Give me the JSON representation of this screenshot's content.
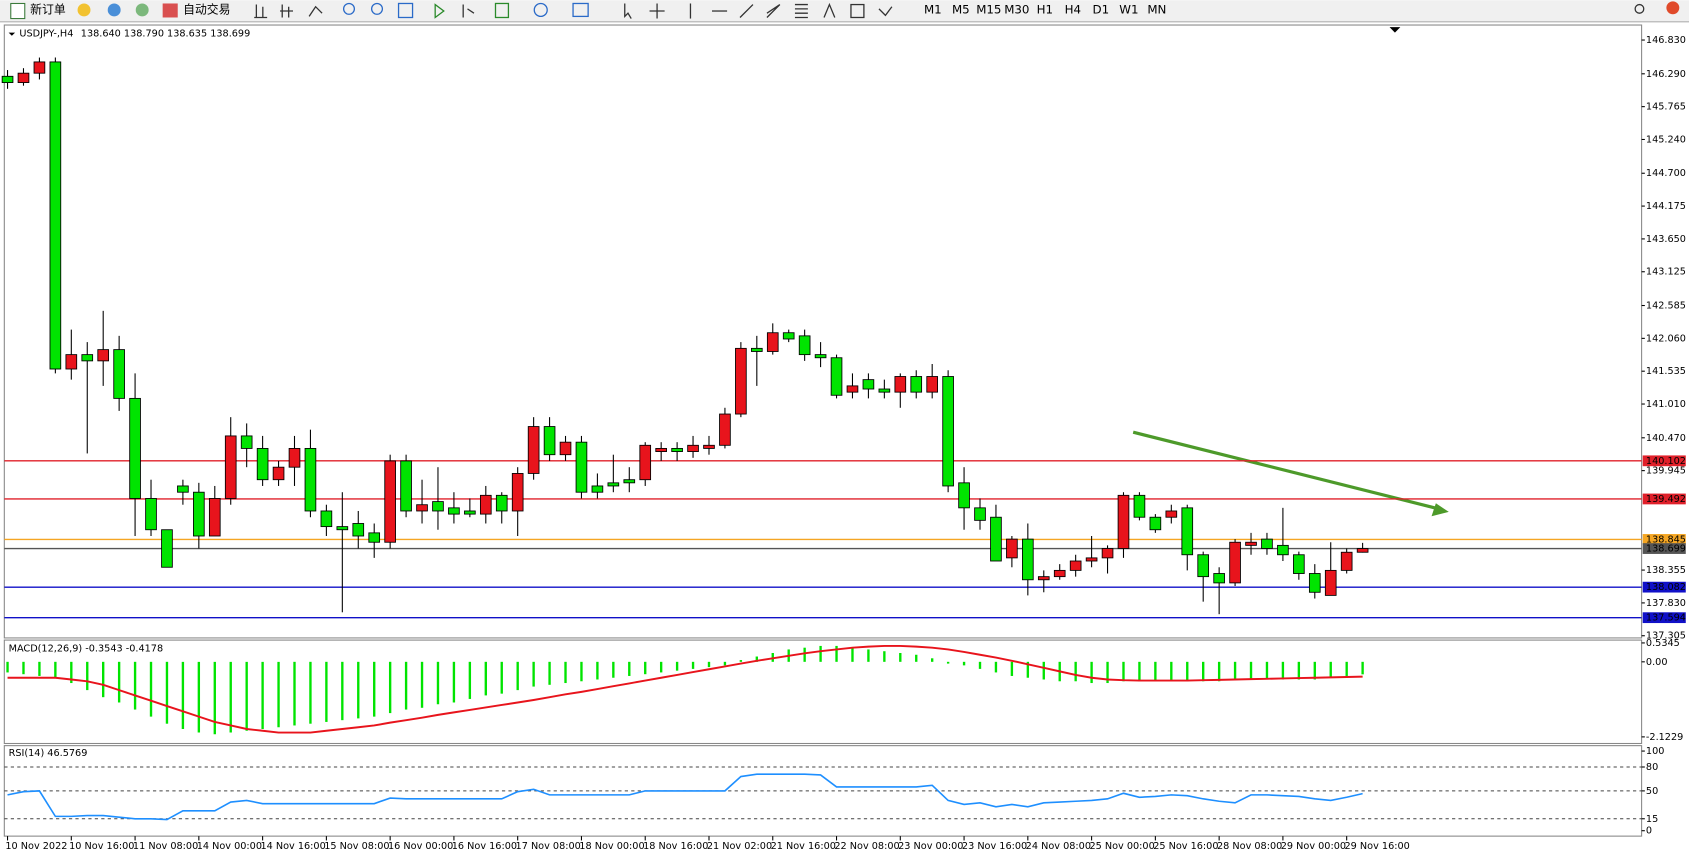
{
  "toolbar": {
    "new_order": "新订单",
    "auto_trading": "自动交易",
    "timeframes": [
      "M1",
      "M5",
      "M15",
      "M30",
      "H1",
      "H4",
      "D1",
      "W1",
      "MN"
    ]
  },
  "chart_data": [
    {
      "type": "candlestick",
      "title": "USDJPY-,H4",
      "ohlc_label": "138.640 138.790 138.635 138.699",
      "up_color": "#e8141c",
      "down_color": "#00e400",
      "categories": [
        "10 Nov 2022",
        null,
        null,
        null,
        "10 Nov 16:00",
        null,
        null,
        null,
        "11 Nov 08:00",
        null,
        null,
        null,
        "14 Nov 00:00",
        null,
        null,
        null,
        "14 Nov 16:00",
        null,
        null,
        null,
        "15 Nov 08:00",
        null,
        null,
        null,
        "16 Nov 00:00",
        null,
        null,
        null,
        "16 Nov 16:00",
        null,
        null,
        null,
        "17 Nov 08:00",
        null,
        null,
        null,
        "18 Nov 00:00",
        null,
        null,
        null,
        "18 Nov 16:00",
        null,
        null,
        null,
        "21 Nov 02:00",
        null,
        null,
        null,
        "21 Nov 16:00",
        null,
        null,
        null,
        "22 Nov 08:00",
        null,
        null,
        null,
        "23 Nov 00:00",
        null,
        null,
        null,
        "23 Nov 16:00",
        null,
        null,
        null,
        "24 Nov 08:00",
        null,
        null,
        null,
        "25 Nov 00:00",
        null,
        null,
        null,
        "25 Nov 16:00",
        null,
        null,
        null,
        "28 Nov 08:00",
        null,
        null,
        null,
        "29 Nov 00:00",
        null,
        null,
        null,
        "29 Nov 16:00",
        null
      ],
      "open": [
        146.25,
        146.15,
        146.3,
        146.48,
        141.57,
        141.8,
        141.7,
        141.88,
        141.1,
        139.5,
        139.0,
        139.7,
        139.6,
        138.9,
        139.5,
        140.5,
        140.3,
        139.8,
        140.0,
        140.3,
        139.3,
        139.05,
        139.1,
        138.95,
        138.8,
        140.1,
        139.3,
        139.45,
        139.35,
        139.3,
        139.25,
        139.55,
        139.3,
        139.9,
        140.65,
        140.2,
        140.4,
        139.7,
        139.75,
        139.8,
        139.8,
        140.25,
        140.3,
        140.25,
        140.3,
        140.35,
        140.85,
        141.9,
        141.85,
        142.15,
        142.1,
        141.8,
        141.75,
        141.2,
        141.4,
        141.25,
        141.2,
        141.45,
        141.2,
        141.45,
        139.75,
        139.35,
        139.2,
        138.55,
        138.85,
        138.2,
        138.25,
        138.35,
        138.5,
        138.55,
        138.7,
        139.55,
        139.2,
        139.2,
        139.35,
        138.6,
        138.3,
        138.15,
        138.75,
        138.85,
        138.75,
        138.6,
        138.3,
        137.95,
        138.35,
        138.64
      ],
      "high": [
        146.35,
        146.38,
        146.55,
        146.55,
        142.2,
        142.0,
        142.5,
        142.1,
        141.5,
        139.8,
        139.0,
        139.8,
        139.75,
        139.7,
        140.8,
        140.7,
        140.5,
        140.1,
        140.5,
        140.6,
        139.4,
        139.6,
        139.3,
        139.1,
        140.2,
        140.2,
        139.8,
        140.0,
        139.6,
        139.5,
        139.7,
        139.6,
        140.0,
        140.8,
        140.8,
        140.5,
        140.5,
        139.9,
        140.2,
        140.0,
        140.4,
        140.4,
        140.4,
        140.5,
        140.5,
        140.95,
        142.0,
        142.1,
        142.3,
        142.2,
        142.2,
        142.0,
        141.8,
        141.5,
        141.5,
        141.4,
        141.5,
        141.55,
        141.65,
        141.55,
        140.0,
        139.5,
        139.4,
        138.9,
        139.1,
        138.35,
        138.45,
        138.6,
        138.9,
        138.75,
        139.6,
        139.6,
        139.25,
        139.4,
        139.4,
        138.65,
        138.4,
        138.85,
        138.95,
        138.95,
        139.35,
        138.65,
        138.45,
        138.8,
        138.7,
        138.79
      ],
      "low": [
        146.05,
        146.1,
        146.2,
        141.5,
        141.4,
        140.22,
        141.3,
        140.9,
        138.9,
        138.9,
        138.4,
        139.4,
        138.7,
        138.9,
        139.4,
        140.0,
        139.7,
        139.7,
        139.7,
        139.2,
        138.9,
        137.68,
        138.7,
        138.55,
        138.7,
        139.2,
        139.1,
        139.0,
        139.1,
        139.2,
        139.1,
        139.1,
        138.9,
        139.8,
        140.1,
        140.1,
        139.5,
        139.5,
        139.6,
        139.6,
        139.7,
        140.1,
        140.1,
        140.15,
        140.2,
        140.3,
        140.8,
        141.3,
        141.8,
        142.0,
        141.7,
        141.6,
        141.1,
        141.1,
        141.1,
        141.1,
        140.95,
        141.1,
        141.1,
        139.6,
        139.0,
        139.0,
        138.5,
        138.4,
        137.95,
        138.0,
        138.2,
        138.25,
        138.4,
        138.3,
        138.55,
        139.15,
        138.95,
        139.1,
        138.35,
        137.85,
        137.65,
        138.1,
        138.6,
        138.6,
        138.5,
        138.2,
        137.9,
        137.95,
        138.3,
        138.635
      ],
      "close": [
        146.15,
        146.3,
        146.48,
        141.57,
        141.8,
        141.7,
        141.88,
        141.1,
        139.5,
        139.0,
        138.4,
        139.6,
        138.9,
        139.5,
        140.5,
        140.3,
        139.8,
        140.0,
        140.3,
        139.3,
        139.05,
        139.0,
        138.9,
        138.8,
        140.1,
        139.3,
        139.4,
        139.3,
        139.25,
        139.25,
        139.55,
        139.3,
        139.9,
        140.65,
        140.2,
        140.4,
        139.6,
        139.6,
        139.7,
        139.75,
        140.35,
        140.3,
        140.25,
        140.35,
        140.35,
        140.85,
        141.9,
        141.85,
        142.15,
        142.05,
        141.8,
        141.75,
        141.15,
        141.3,
        141.25,
        141.2,
        141.45,
        141.2,
        141.45,
        139.7,
        139.35,
        139.15,
        138.5,
        138.85,
        138.2,
        138.25,
        138.35,
        138.5,
        138.55,
        138.7,
        139.55,
        139.2,
        139.0,
        139.3,
        138.6,
        138.25,
        138.15,
        138.8,
        138.8,
        138.7,
        138.6,
        138.3,
        138.0,
        138.35,
        138.64,
        138.699
      ],
      "ylim": [
        137.27,
        147.07
      ],
      "yticks": [
        {
          "value": 146.83,
          "label": "146.830"
        },
        {
          "value": 146.29,
          "label": "146.290"
        },
        {
          "value": 145.765,
          "label": "145.765"
        },
        {
          "value": 145.24,
          "label": "145.240"
        },
        {
          "value": 144.7,
          "label": "144.700"
        },
        {
          "value": 144.175,
          "label": "144.175"
        },
        {
          "value": 143.65,
          "label": "143.650"
        },
        {
          "value": 143.125,
          "label": "143.125"
        },
        {
          "value": 142.585,
          "label": "142.585"
        },
        {
          "value": 142.06,
          "label": "142.060"
        },
        {
          "value": 141.535,
          "label": "141.535"
        },
        {
          "value": 141.01,
          "label": "141.010"
        },
        {
          "value": 140.47,
          "label": "140.470"
        },
        {
          "value": 139.945,
          "label": "139.945"
        },
        {
          "value": 138.355,
          "label": "138.355"
        },
        {
          "value": 137.83,
          "label": "137.830"
        },
        {
          "value": 137.305,
          "label": "137.305"
        }
      ],
      "levels": [
        {
          "value": 140.102,
          "color": "#e0202a"
        },
        {
          "value": 139.492,
          "color": "#e0202a"
        },
        {
          "value": 138.845,
          "color": "#f5a623"
        },
        {
          "value": 138.699,
          "color": "#555555"
        },
        {
          "value": 138.082,
          "color": "#1010c8"
        },
        {
          "value": 137.594,
          "color": "#1010c8"
        }
      ]
    },
    {
      "type": "macd",
      "title": "MACD(12,26,9) -0.3543 -0.4178",
      "hist_color": "#00e400",
      "signal_color": "#e8141c",
      "series": [
        {
          "name": "MACD",
          "values": [
            -0.3,
            -0.35,
            -0.4,
            -0.45,
            -0.6,
            -0.8,
            -1.0,
            -1.15,
            -1.35,
            -1.55,
            -1.75,
            -1.9,
            -2.0,
            -2.05,
            -2.0,
            -1.95,
            -1.9,
            -1.85,
            -1.8,
            -1.75,
            -1.7,
            -1.65,
            -1.6,
            -1.55,
            -1.45,
            -1.35,
            -1.3,
            -1.2,
            -1.15,
            -1.05,
            -0.95,
            -0.9,
            -0.8,
            -0.7,
            -0.65,
            -0.6,
            -0.55,
            -0.5,
            -0.45,
            -0.4,
            -0.35,
            -0.3,
            -0.25,
            -0.2,
            -0.15,
            -0.1,
            0.05,
            0.15,
            0.25,
            0.35,
            0.4,
            0.45,
            0.45,
            0.4,
            0.35,
            0.3,
            0.25,
            0.2,
            0.1,
            -0.05,
            -0.1,
            -0.2,
            -0.3,
            -0.4,
            -0.45,
            -0.5,
            -0.55,
            -0.55,
            -0.6,
            -0.6,
            -0.55,
            -0.55,
            -0.55,
            -0.55,
            -0.55,
            -0.55,
            -0.55,
            -0.5,
            -0.5,
            -0.5,
            -0.5,
            -0.5,
            -0.5,
            -0.45,
            -0.4,
            -0.3543
          ]
        },
        {
          "name": "Signal",
          "values": [
            -0.45,
            -0.45,
            -0.45,
            -0.45,
            -0.5,
            -0.55,
            -0.65,
            -0.8,
            -0.95,
            -1.1,
            -1.25,
            -1.4,
            -1.55,
            -1.7,
            -1.8,
            -1.9,
            -1.95,
            -2.0,
            -2.0,
            -2.0,
            -1.95,
            -1.9,
            -1.85,
            -1.8,
            -1.72,
            -1.65,
            -1.58,
            -1.5,
            -1.43,
            -1.36,
            -1.29,
            -1.22,
            -1.15,
            -1.08,
            -1.0,
            -0.92,
            -0.85,
            -0.77,
            -0.69,
            -0.61,
            -0.53,
            -0.45,
            -0.37,
            -0.29,
            -0.21,
            -0.13,
            -0.05,
            0.03,
            0.1,
            0.17,
            0.24,
            0.3,
            0.35,
            0.4,
            0.43,
            0.45,
            0.45,
            0.43,
            0.4,
            0.35,
            0.28,
            0.2,
            0.12,
            0.03,
            -0.07,
            -0.17,
            -0.27,
            -0.37,
            -0.45,
            -0.5,
            -0.52,
            -0.53,
            -0.53,
            -0.53,
            -0.53,
            -0.52,
            -0.51,
            -0.5,
            -0.49,
            -0.48,
            -0.47,
            -0.46,
            -0.45,
            -0.44,
            -0.43,
            -0.4178
          ]
        }
      ],
      "ylim": [
        -2.31,
        0.615
      ],
      "yticks": [
        0.5345,
        {
          "value": 0,
          "label": "0.00"
        },
        -2.1229
      ]
    },
    {
      "type": "rsi",
      "title": "RSI(14) 46.5769",
      "color": "#1e8fff",
      "values": [
        45,
        49,
        50,
        18,
        18,
        19,
        19,
        17,
        15,
        15,
        14,
        25,
        25,
        25,
        36,
        38,
        34,
        34,
        34,
        34,
        34,
        34,
        34,
        34,
        41,
        40,
        40,
        40,
        40,
        40,
        40,
        40,
        49,
        52,
        45,
        45,
        45,
        45,
        45,
        45,
        50,
        50,
        50,
        50,
        50,
        50,
        68,
        71,
        71,
        71,
        71,
        70,
        55,
        55,
        55,
        55,
        55,
        55,
        57,
        38,
        33,
        35,
        30,
        33,
        30,
        35,
        36,
        37,
        38,
        40,
        47,
        42,
        43,
        45,
        44,
        40,
        37,
        35,
        45,
        45,
        44,
        43,
        40,
        38,
        42,
        46.5769
      ],
      "ylim": [
        -6.8,
        106.8
      ],
      "yticks": [
        100,
        80,
        50,
        15,
        0
      ],
      "levels": [
        80,
        50,
        15
      ]
    }
  ]
}
